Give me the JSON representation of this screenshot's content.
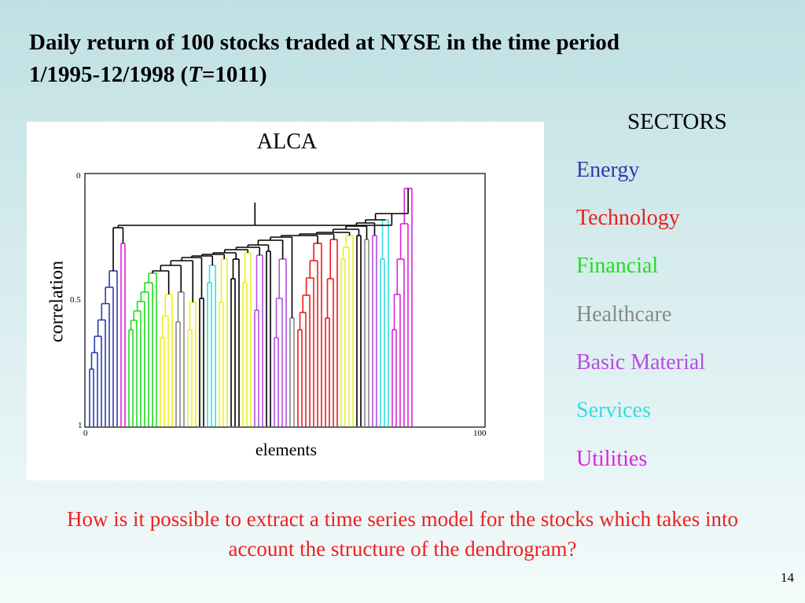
{
  "slide": {
    "title_line1": "Daily return of 100 stocks traded at NYSE in the time period",
    "title_line2_pre": "1/1995-12/1998 (",
    "title_line2_var": "T",
    "title_line2_post": "=1011)",
    "page_number": "14",
    "question": "How is it possible to extract a time series model for the stocks which takes into account the structure of the dendrogram?"
  },
  "figure": {
    "title": "ALCA",
    "ylabel": "correlation",
    "xlabel": "elements",
    "y_ticks": [
      "0",
      "0.5",
      "1"
    ],
    "x_ticks": [
      "0",
      "100"
    ]
  },
  "legend": {
    "title": "SECTORS",
    "items": [
      {
        "label": "Energy",
        "color": "#2b3cb0"
      },
      {
        "label": "Technology",
        "color": "#ee1c1c"
      },
      {
        "label": "Financial",
        "color": "#22dd22"
      },
      {
        "label": "Healthcare",
        "color": "#888888"
      },
      {
        "label": "Basic Material",
        "color": "#b34fe0"
      },
      {
        "label": "Services",
        "color": "#33dde0"
      },
      {
        "label": "Utilities",
        "color": "#dd22dd"
      }
    ]
  },
  "palette": {
    "energy": "#2b3cb0",
    "technology": "#ee1c1c",
    "financial": "#22dd22",
    "healthcare": "#888888",
    "basic_material": "#b34fe0",
    "services": "#33dde0",
    "utilities": "#dd22dd",
    "consumer": "#eeee22",
    "other": "#000000"
  }
}
